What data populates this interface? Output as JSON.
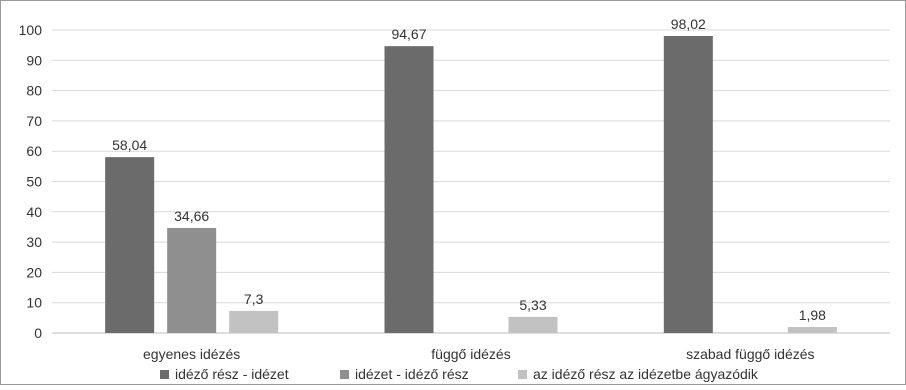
{
  "chart_data": {
    "type": "bar",
    "categories": [
      "egyenes idézés",
      "függő idézés",
      "szabad függő idézés"
    ],
    "series": [
      {
        "name": "idéző rész - idézet",
        "values": [
          58.04,
          94.67,
          98.02
        ],
        "labels": [
          "58,04",
          "94,67",
          "98,02"
        ],
        "color": "#6b6b6b"
      },
      {
        "name": "idézet - idéző rész",
        "values": [
          34.66,
          null,
          null
        ],
        "labels": [
          "34,66",
          "",
          ""
        ],
        "color": "#8f8f8f"
      },
      {
        "name": "az idéző rész az idézetbe ágyazódik",
        "values": [
          7.3,
          5.33,
          1.98
        ],
        "labels": [
          "7,3",
          "5,33",
          "1,98"
        ],
        "color": "#c2c2c2"
      }
    ],
    "yticks": [
      "0",
      "10",
      "20",
      "30",
      "40",
      "50",
      "60",
      "70",
      "80",
      "90",
      "100"
    ],
    "ylim": [
      0,
      100
    ],
    "grid": true,
    "legend": "bottom"
  }
}
